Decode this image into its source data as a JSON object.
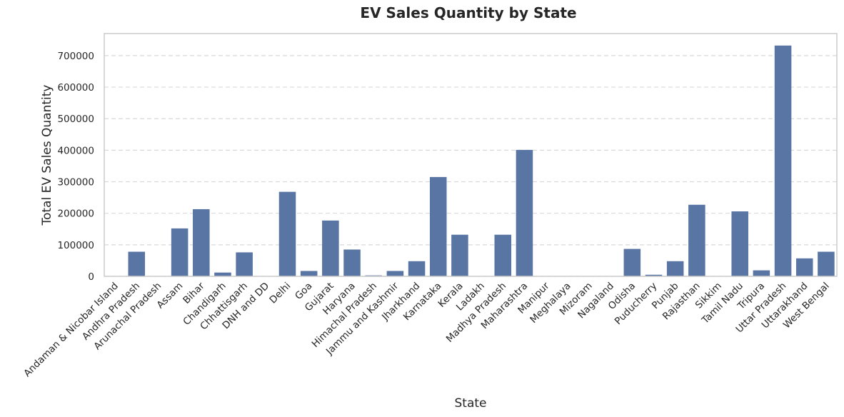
{
  "chart_data": {
    "type": "bar",
    "title": "EV Sales Quantity by State",
    "xlabel": "State",
    "ylabel": "Total EV Sales Quantity",
    "ylim": [
      0,
      770000
    ],
    "yticks": [
      0,
      100000,
      200000,
      300000,
      400000,
      500000,
      600000,
      700000
    ],
    "grid": "horizontal dashed",
    "bar_color": "#5875a4",
    "categories": [
      "Andaman & Nicobar Island",
      "Andhra Pradesh",
      "Arunachal Pradesh",
      "Assam",
      "Bihar",
      "Chandigarh",
      "Chhattisgarh",
      "DNH and DD",
      "Delhi",
      "Goa",
      "Gujarat",
      "Haryana",
      "Himachal Pradesh",
      "Jammu and Kashmir",
      "Jharkhand",
      "Karnataka",
      "Kerala",
      "Ladakh",
      "Madhya Pradesh",
      "Maharashtra",
      "Manipur",
      "Meghalaya",
      "Mizoram",
      "Nagaland",
      "Odisha",
      "Puducherry",
      "Punjab",
      "Rajasthan",
      "Sikkim",
      "Tamil Nadu",
      "Tripura",
      "Uttar Pradesh",
      "Uttarakhand",
      "West Bengal"
    ],
    "values": [
      200,
      78000,
      500,
      152000,
      213000,
      12000,
      76000,
      1000,
      268000,
      17000,
      177000,
      85000,
      3000,
      17000,
      48000,
      315000,
      132000,
      300,
      132000,
      401000,
      700,
      400,
      200,
      100,
      87000,
      5000,
      48000,
      227000,
      300,
      206000,
      19000,
      732000,
      57000,
      78000
    ]
  }
}
